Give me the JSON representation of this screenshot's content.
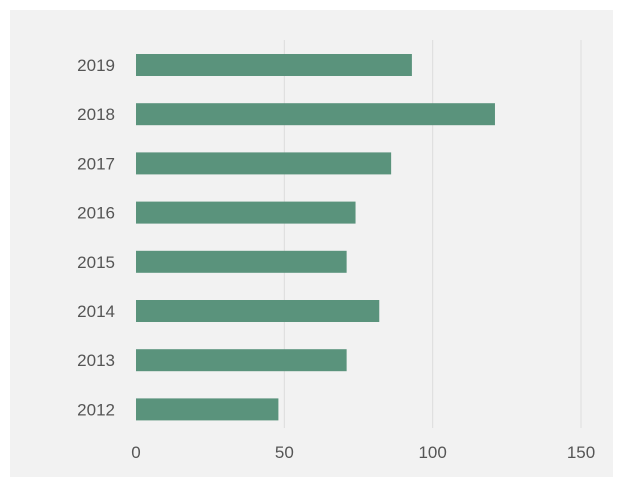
{
  "chart_data": {
    "type": "bar",
    "orientation": "horizontal",
    "categories": [
      "2019",
      "2018",
      "2017",
      "2016",
      "2015",
      "2014",
      "2013",
      "2012"
    ],
    "values": [
      93,
      121,
      86,
      74,
      71,
      82,
      71,
      48
    ],
    "title": "",
    "xlabel": "",
    "ylabel": "",
    "xlim": [
      0,
      150
    ],
    "x_ticks": [
      "0",
      "50",
      "100",
      "150"
    ],
    "grid": "vertical",
    "legend": "none",
    "colors": {
      "bar": "#5a937c",
      "background": "#f2f2f2",
      "grid": "#dddddd",
      "tick_text": "#555555"
    }
  }
}
